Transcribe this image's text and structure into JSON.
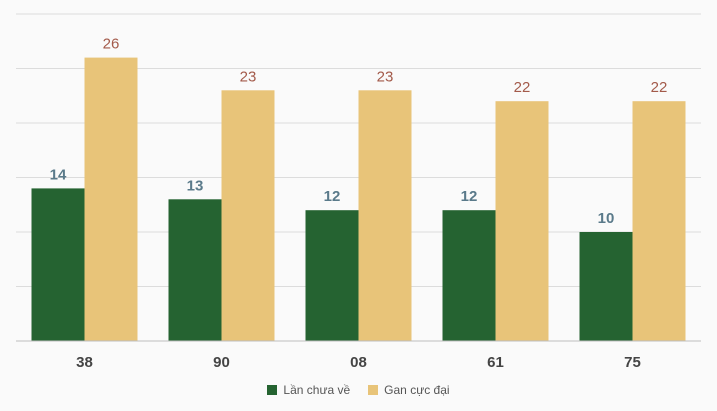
{
  "chart_data": {
    "type": "bar",
    "categories": [
      "38",
      "90",
      "08",
      "61",
      "75"
    ],
    "series": [
      {
        "name": "Lần chưa về",
        "values": [
          14,
          13,
          12,
          12,
          10
        ],
        "color": "#256331",
        "label_color": "#5a7a8a"
      },
      {
        "name": "Gan cực đại",
        "values": [
          26,
          23,
          23,
          22,
          22
        ],
        "color": "#e8c479",
        "label_color": "#a35a4a"
      }
    ],
    "ylim": [
      0,
      30
    ],
    "grid": true,
    "legend": "bottom"
  }
}
